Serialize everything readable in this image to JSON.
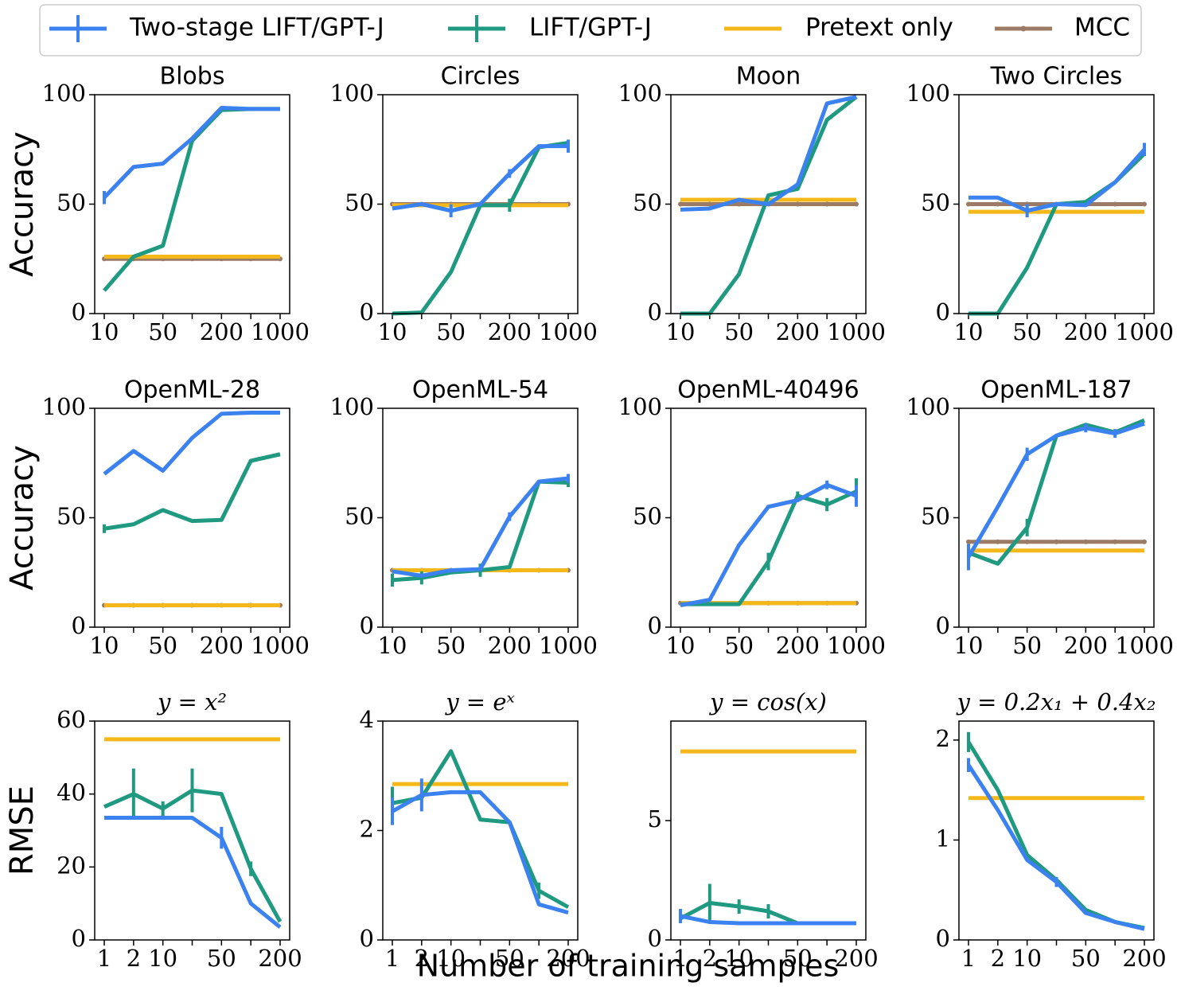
{
  "x_label": "Number of training samples",
  "chart_data": [
    {
      "type": "line",
      "title": "Blobs",
      "y_label": "Accuracy",
      "categories": [
        "10",
        null,
        "50",
        null,
        "200",
        null,
        "1000"
      ],
      "ylim": [
        0,
        100
      ],
      "yticks": [
        0,
        50,
        100
      ],
      "series": [
        {
          "name": "Two-stage LIFT/GPT-J",
          "color": "#3b82f0",
          "values": [
            53,
            67,
            68.5,
            80,
            94,
            93.5,
            93.5
          ],
          "errors": [
            3,
            null,
            null,
            null,
            null,
            null,
            null
          ]
        },
        {
          "name": "LIFT/GPT-J",
          "color": "#1f9a80",
          "values": [
            10.5,
            26,
            31,
            79,
            93,
            93.5,
            93.5
          ],
          "errors": [
            null,
            null,
            null,
            null,
            null,
            null,
            null
          ]
        },
        {
          "name": "Pretext only",
          "color": "#f5b81a",
          "values": [
            26,
            26,
            26,
            26,
            26,
            26,
            26
          ]
        },
        {
          "name": "MCC",
          "color": "#9b7b66",
          "values": [
            25,
            25,
            25,
            25,
            25,
            25,
            25
          ],
          "markers": true
        }
      ]
    },
    {
      "type": "line",
      "title": "Circles",
      "categories": [
        "10",
        null,
        "50",
        null,
        "200",
        null,
        "1000"
      ],
      "ylim": [
        0,
        100
      ],
      "yticks": [
        0,
        50,
        100
      ],
      "series": [
        {
          "name": "Two-stage LIFT/GPT-J",
          "color": "#3b82f0",
          "values": [
            48,
            50,
            47,
            50,
            64,
            76.5,
            76.5
          ],
          "errors": [
            null,
            null,
            3,
            null,
            2,
            null,
            3
          ]
        },
        {
          "name": "LIFT/GPT-J",
          "color": "#1f9a80",
          "values": [
            0,
            0.5,
            19,
            49.5,
            49.5,
            76,
            78
          ],
          "errors": [
            null,
            null,
            null,
            null,
            3,
            null,
            null
          ]
        },
        {
          "name": "Pretext only",
          "color": "#f5b81a",
          "values": [
            49.5,
            49.5,
            49.5,
            49.5,
            49.5,
            49.5,
            49.5
          ]
        },
        {
          "name": "MCC",
          "color": "#9b7b66",
          "values": [
            50,
            50,
            50,
            50,
            50,
            50,
            50
          ],
          "markers": true
        }
      ]
    },
    {
      "type": "line",
      "title": "Moon",
      "categories": [
        "10",
        null,
        "50",
        null,
        "200",
        null,
        "1000"
      ],
      "ylim": [
        0,
        100
      ],
      "yticks": [
        0,
        50,
        100
      ],
      "series": [
        {
          "name": "Two-stage LIFT/GPT-J",
          "color": "#3b82f0",
          "values": [
            47.5,
            48,
            52,
            50,
            59,
            96,
            99
          ],
          "errors": [
            null,
            null,
            null,
            null,
            null,
            null,
            null
          ]
        },
        {
          "name": "LIFT/GPT-J",
          "color": "#1f9a80",
          "values": [
            0,
            0,
            18,
            54,
            57,
            88.5,
            99
          ],
          "errors": [
            null,
            null,
            null,
            null,
            null,
            null,
            null
          ]
        },
        {
          "name": "Pretext only",
          "color": "#f5b81a",
          "values": [
            52,
            52,
            52,
            52,
            52,
            52,
            52
          ]
        },
        {
          "name": "MCC",
          "color": "#9b7b66",
          "values": [
            50,
            50,
            50,
            50,
            50,
            50,
            50
          ],
          "markers": true
        }
      ]
    },
    {
      "type": "line",
      "title": "Two Circles",
      "categories": [
        "10",
        null,
        "50",
        null,
        "200",
        null,
        "1000"
      ],
      "ylim": [
        0,
        100
      ],
      "yticks": [
        0,
        50,
        100
      ],
      "series": [
        {
          "name": "Two-stage LIFT/GPT-J",
          "color": "#3b82f0",
          "values": [
            53,
            53,
            47,
            50,
            49.5,
            60,
            75
          ],
          "errors": [
            null,
            null,
            3,
            null,
            null,
            null,
            3
          ]
        },
        {
          "name": "LIFT/GPT-J",
          "color": "#1f9a80",
          "values": [
            0,
            0,
            21,
            50,
            51,
            60,
            73
          ],
          "errors": [
            null,
            null,
            null,
            null,
            null,
            null,
            null
          ]
        },
        {
          "name": "Pretext only",
          "color": "#f5b81a",
          "values": [
            46.5,
            46.5,
            46.5,
            46.5,
            46.5,
            46.5,
            46.5
          ]
        },
        {
          "name": "MCC",
          "color": "#9b7b66",
          "values": [
            50,
            50,
            50,
            50,
            50,
            50,
            50
          ],
          "markers": true
        }
      ]
    },
    {
      "type": "line",
      "title": "OpenML-28",
      "y_label": "Accuracy",
      "categories": [
        "10",
        null,
        "50",
        null,
        "200",
        null,
        "1000"
      ],
      "ylim": [
        0,
        100
      ],
      "yticks": [
        0,
        50,
        100
      ],
      "series": [
        {
          "name": "Two-stage LIFT/GPT-J",
          "color": "#3b82f0",
          "values": [
            70,
            80.5,
            71.5,
            86.5,
            97.5,
            98,
            98
          ],
          "errors": [
            null,
            null,
            null,
            null,
            null,
            null,
            null
          ]
        },
        {
          "name": "LIFT/GPT-J",
          "color": "#1f9a80",
          "values": [
            45,
            47,
            53.5,
            48.5,
            49,
            76,
            79
          ],
          "errors": [
            2,
            null,
            null,
            null,
            null,
            null,
            null
          ]
        },
        {
          "name": "Pretext only",
          "color": "#f5b81a",
          "values": [
            10,
            10,
            10,
            10,
            10,
            10,
            10
          ]
        },
        {
          "name": "MCC",
          "color": "#9b7b66",
          "values": [
            10,
            10,
            10,
            10,
            10,
            10,
            10
          ],
          "markers": true
        }
      ]
    },
    {
      "type": "line",
      "title": "OpenML-54",
      "categories": [
        "10",
        null,
        "50",
        null,
        "200",
        null,
        "1000"
      ],
      "ylim": [
        0,
        100
      ],
      "yticks": [
        0,
        50,
        100
      ],
      "series": [
        {
          "name": "Two-stage LIFT/GPT-J",
          "color": "#3b82f0",
          "values": [
            25.5,
            23.5,
            26,
            26.5,
            50.5,
            66.5,
            68
          ],
          "errors": [
            null,
            null,
            null,
            null,
            2,
            null,
            2
          ]
        },
        {
          "name": "LIFT/GPT-J",
          "color": "#1f9a80",
          "values": [
            21.5,
            22.5,
            25,
            26,
            27.5,
            66.5,
            66
          ],
          "errors": [
            3,
            3,
            null,
            3,
            null,
            null,
            2
          ]
        },
        {
          "name": "Pretext only",
          "color": "#f5b81a",
          "values": [
            26,
            26,
            26,
            26,
            26,
            26,
            26
          ]
        },
        {
          "name": "MCC",
          "color": "#9b7b66",
          "values": [
            26,
            26,
            26,
            26,
            26,
            26,
            26
          ],
          "markers": true
        }
      ]
    },
    {
      "type": "line",
      "title": "OpenML-40496",
      "categories": [
        "10",
        null,
        "50",
        null,
        "200",
        null,
        "1000"
      ],
      "ylim": [
        0,
        100
      ],
      "yticks": [
        0,
        50,
        100
      ],
      "series": [
        {
          "name": "Two-stage LIFT/GPT-J",
          "color": "#3b82f0",
          "values": [
            10,
            12.5,
            37.5,
            55,
            58,
            65,
            60
          ],
          "errors": [
            null,
            null,
            null,
            null,
            null,
            2,
            5
          ]
        },
        {
          "name": "LIFT/GPT-J",
          "color": "#1f9a80",
          "values": [
            10.5,
            10.5,
            10.5,
            30,
            60,
            56,
            62
          ],
          "errors": [
            null,
            null,
            null,
            4,
            2,
            3,
            6
          ]
        },
        {
          "name": "Pretext only",
          "color": "#f5b81a",
          "values": [
            11,
            11,
            11,
            11,
            11,
            11,
            11
          ]
        },
        {
          "name": "MCC",
          "color": "#9b7b66",
          "values": [
            11,
            11,
            11,
            11,
            11,
            11,
            11
          ],
          "markers": true
        }
      ]
    },
    {
      "type": "line",
      "title": "OpenML-187",
      "categories": [
        "10",
        null,
        "50",
        null,
        "200",
        null,
        "1000"
      ],
      "ylim": [
        0,
        100
      ],
      "yticks": [
        0,
        50,
        100
      ],
      "series": [
        {
          "name": "Two-stage LIFT/GPT-J",
          "color": "#3b82f0",
          "values": [
            32,
            55,
            79,
            87.5,
            91,
            88.5,
            93
          ],
          "errors": [
            6,
            null,
            3,
            null,
            2,
            2,
            null
          ]
        },
        {
          "name": "LIFT/GPT-J",
          "color": "#1f9a80",
          "values": [
            34,
            29,
            45.5,
            87.5,
            92.5,
            89,
            94.5
          ],
          "errors": [
            null,
            null,
            4,
            null,
            null,
            null,
            null
          ]
        },
        {
          "name": "Pretext only",
          "color": "#f5b81a",
          "values": [
            35,
            35,
            35,
            35,
            35,
            35,
            35
          ]
        },
        {
          "name": "MCC",
          "color": "#9b7b66",
          "values": [
            39,
            39,
            39,
            39,
            39,
            39,
            39
          ],
          "markers": true
        }
      ]
    },
    {
      "type": "line",
      "title": "y = x²",
      "math_title": true,
      "y_label": "RMSE",
      "categories": [
        "1",
        "2",
        "10",
        null,
        "50",
        null,
        "200"
      ],
      "ylim": [
        0,
        60
      ],
      "yticks": [
        0,
        20,
        40,
        60
      ],
      "series": [
        {
          "name": "Two-stage LIFT/GPT-J",
          "color": "#3b82f0",
          "values": [
            33.5,
            33.5,
            33.5,
            33.5,
            28,
            10,
            3.5
          ],
          "errors": [
            null,
            null,
            null,
            null,
            3,
            null,
            null
          ]
        },
        {
          "name": "LIFT/GPT-J",
          "color": "#1f9a80",
          "values": [
            36.5,
            40,
            36,
            41,
            40,
            19.5,
            5
          ],
          "errors": [
            null,
            7,
            2,
            6,
            null,
            2,
            null
          ]
        },
        {
          "name": "Pretext only",
          "color": "#f5b81a",
          "values": [
            55,
            55,
            55,
            55,
            55,
            55,
            55
          ]
        }
      ]
    },
    {
      "type": "line",
      "title": "y = eˣ",
      "math_title": true,
      "categories": [
        "1",
        "2",
        "10",
        null,
        "50",
        null,
        "200"
      ],
      "ylim": [
        0,
        4
      ],
      "yticks": [
        0,
        2,
        4
      ],
      "series": [
        {
          "name": "Two-stage LIFT/GPT-J",
          "color": "#3b82f0",
          "values": [
            2.35,
            2.65,
            2.7,
            2.7,
            2.15,
            0.65,
            0.5
          ],
          "errors": [
            0.25,
            0.3,
            null,
            null,
            null,
            null,
            null
          ]
        },
        {
          "name": "LIFT/GPT-J",
          "color": "#1f9a80",
          "values": [
            2.5,
            2.6,
            3.45,
            2.2,
            2.15,
            0.9,
            0.6
          ],
          "errors": [
            0.3,
            null,
            null,
            null,
            null,
            0.15,
            null
          ]
        },
        {
          "name": "Pretext only",
          "color": "#f5b81a",
          "values": [
            2.85,
            2.85,
            2.85,
            2.85,
            2.85,
            2.85,
            2.85
          ]
        }
      ]
    },
    {
      "type": "line",
      "title": "y = cos(x)",
      "math_title": true,
      "categories": [
        "1",
        "2",
        "10",
        null,
        "50",
        null,
        "200"
      ],
      "ylim": [
        0,
        9.17
      ],
      "yticks": [
        0,
        5
      ],
      "series": [
        {
          "name": "Two-stage LIFT/GPT-J",
          "color": "#3b82f0",
          "values": [
            1.0,
            0.75,
            0.7,
            0.7,
            0.7,
            0.7,
            0.7
          ],
          "errors": [
            0.3,
            null,
            null,
            null,
            null,
            null,
            null
          ]
        },
        {
          "name": "LIFT/GPT-J",
          "color": "#1f9a80",
          "values": [
            0.9,
            1.55,
            1.4,
            1.2,
            0.7,
            0.7,
            0.7
          ],
          "errors": [
            null,
            0.8,
            0.3,
            0.3,
            null,
            null,
            null
          ]
        },
        {
          "name": "Pretext only",
          "color": "#f5b81a",
          "values": [
            7.9,
            7.9,
            7.9,
            7.9,
            7.9,
            7.9,
            7.9
          ]
        }
      ]
    },
    {
      "type": "line",
      "title": "y = 0.2x₁ + 0.4x₂",
      "math_title": true,
      "categories": [
        "1",
        "2",
        "10",
        null,
        "50",
        null,
        "200"
      ],
      "ylim": [
        0,
        2.19
      ],
      "yticks": [
        0,
        1,
        2
      ],
      "series": [
        {
          "name": "Two-stage LIFT/GPT-J",
          "color": "#3b82f0",
          "values": [
            1.75,
            1.3,
            0.8,
            0.58,
            0.27,
            0.18,
            0.11
          ],
          "errors": [
            0.07,
            null,
            null,
            0.05,
            null,
            null,
            null
          ]
        },
        {
          "name": "LIFT/GPT-J",
          "color": "#1f9a80",
          "values": [
            1.98,
            1.5,
            0.85,
            0.6,
            0.3,
            0.18,
            0.12
          ],
          "errors": [
            0.1,
            null,
            null,
            null,
            null,
            null,
            null
          ]
        },
        {
          "name": "Pretext only",
          "color": "#f5b81a",
          "values": [
            1.42,
            1.42,
            1.42,
            1.42,
            1.42,
            1.42,
            1.42
          ]
        }
      ]
    }
  ]
}
